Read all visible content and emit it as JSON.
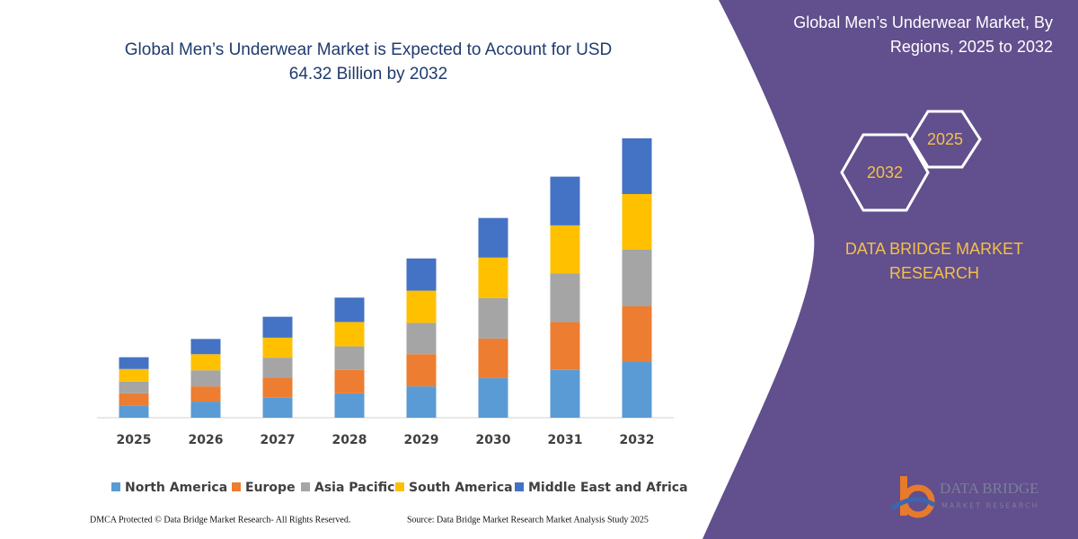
{
  "chart_data": {
    "type": "bar",
    "stacked": true,
    "title": "Global Men’s Underwear Market is Expected to Account for USD 64.32 Billion by 2032",
    "categories": [
      "2025",
      "2026",
      "2027",
      "2028",
      "2029",
      "2030",
      "2031",
      "2032"
    ],
    "series": [
      {
        "name": "North America",
        "color": "#5b9bd5",
        "values": [
          2.7,
          3.7,
          4.6,
          5.6,
          7.2,
          9.1,
          11.0,
          12.8
        ]
      },
      {
        "name": "Europe",
        "color": "#ed7d31",
        "values": [
          2.9,
          3.5,
          4.6,
          5.4,
          7.4,
          9.1,
          11.0,
          12.8
        ]
      },
      {
        "name": "Asia Pacific",
        "color": "#a5a5a5",
        "values": [
          2.7,
          3.7,
          4.6,
          5.4,
          7.2,
          9.3,
          11.2,
          13.0
        ]
      },
      {
        "name": "South America",
        "color": "#ffc000",
        "values": [
          2.9,
          3.7,
          4.6,
          5.6,
          7.4,
          9.3,
          11.0,
          12.8
        ]
      },
      {
        "name": "Middle East and Africa",
        "color": "#4472c4",
        "values": [
          2.7,
          3.5,
          4.8,
          5.6,
          7.4,
          9.1,
          11.2,
          12.8
        ]
      }
    ],
    "legend": "bottom"
  },
  "sidebar": {
    "title": "Global Men’s Underwear Market, By Regions, 2025 to 2032",
    "hex_labels": [
      "2025",
      "2032"
    ],
    "brand": "DATA BRIDGE MARKET RESEARCH"
  },
  "logo": {
    "name": "DATA BRIDGE",
    "tagline": "MARKET RESEARCH"
  },
  "footer": {
    "left": "DMCA Protected © Data Bridge Market Research-  All Rights Reserved.",
    "right": "Source: Data Bridge Market Research  Market Analysis Study 2025"
  }
}
